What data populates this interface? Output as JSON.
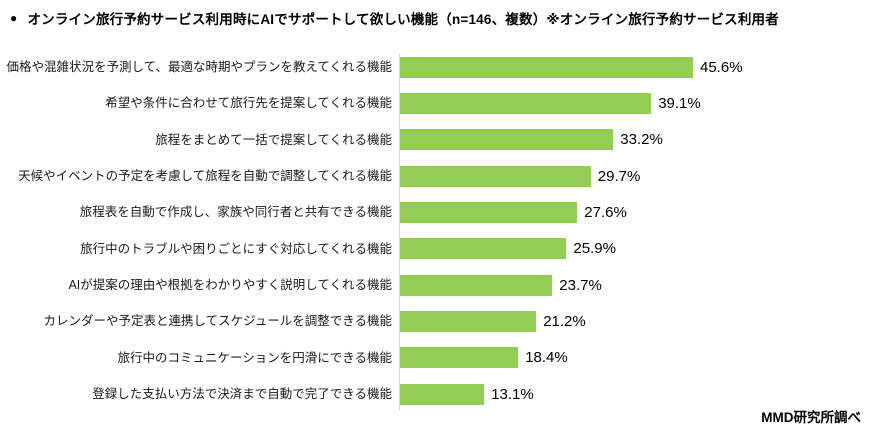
{
  "title": {
    "bullet": "●",
    "text": "オンライン旅行予約サービス利用時にAIでサポートして欲しい機能（n=146、複数）※オンライン旅行予約サービス利用者"
  },
  "source": "MMD研究所調べ",
  "chart_data": {
    "type": "bar",
    "orientation": "horizontal",
    "categories": [
      "価格や混雑状況を予測して、最適な時期やプランを教えてくれる機能",
      "希望や条件に合わせて旅行先を提案してくれる機能",
      "旅程をまとめて一括で提案してくれる機能",
      "天候やイベントの予定を考慮して旅程を自動で調整してくれる機能",
      "旅程表を自動で作成し、家族や同行者と共有できる機能",
      "旅行中のトラブルや困りごとにすぐ対応してくれる機能",
      "AIが提案の理由や根拠をわかりやすく説明してくれる機能",
      "カレンダーや予定表と連携してスケジュールを調整できる機能",
      "旅行中のコミュニケーションを円滑にできる機能",
      "登録した支払い方法で決済まで自動で完了できる機能"
    ],
    "values": [
      45.6,
      39.1,
      33.2,
      29.7,
      27.6,
      25.9,
      23.7,
      21.2,
      18.4,
      13.1
    ],
    "value_labels": [
      "45.6%",
      "39.1%",
      "33.2%",
      "29.7%",
      "27.6%",
      "25.9%",
      "23.7%",
      "21.2%",
      "18.4%",
      "13.1%"
    ],
    "title": "オンライン旅行予約サービス利用時にAIでサポートして欲しい機能（n=146、複数）※オンライン旅行予約サービス利用者",
    "xlabel": "",
    "ylabel": "",
    "xlim": [
      0,
      50
    ],
    "grid": false,
    "legend": false,
    "bar_color": "#92CE54",
    "axis_line_color": "#d9d9d9"
  }
}
